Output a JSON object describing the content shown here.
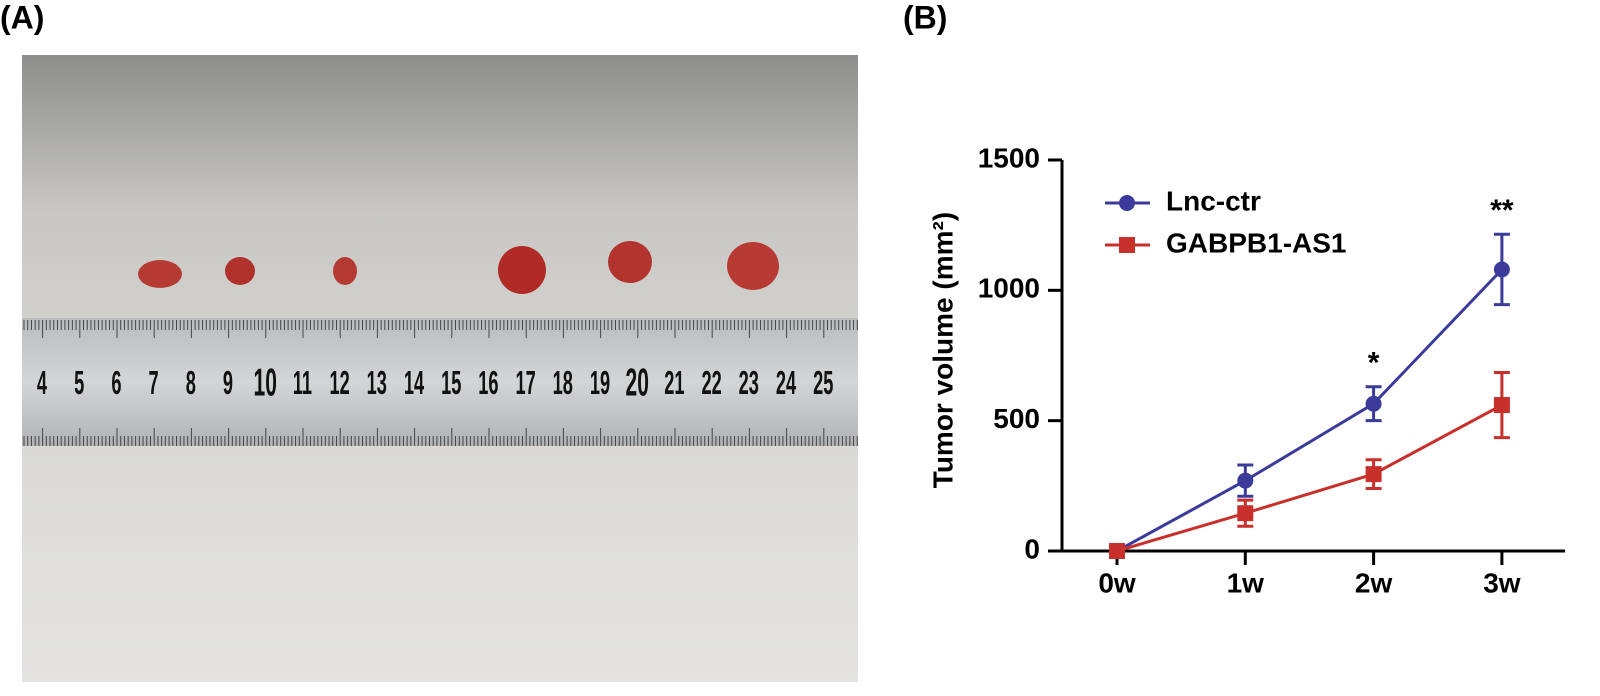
{
  "panel_labels": [
    "(A)",
    "(B)"
  ],
  "photo": {
    "ruler_labels": [
      "4",
      "5",
      "6",
      "7",
      "8",
      "9",
      "10",
      "11",
      "12",
      "13",
      "14",
      "15",
      "16",
      "17",
      "18",
      "19",
      "20",
      "21",
      "22",
      "23",
      "24",
      "25"
    ]
  },
  "chart_data": {
    "type": "line",
    "y_label": "Tumor volume (mm²)",
    "categories": [
      "0w",
      "1w",
      "2w",
      "3w"
    ],
    "series": [
      {
        "name": "Lnc-ctr",
        "color": "#3b3b9c",
        "marker": "circle",
        "values": [
          0,
          270,
          565,
          1080
        ],
        "errors": [
          0,
          60,
          65,
          135
        ]
      },
      {
        "name": "GABPB1-AS1",
        "color": "#c8302c",
        "marker": "square",
        "values": [
          0,
          145,
          295,
          560
        ],
        "errors": [
          0,
          50,
          55,
          125
        ]
      }
    ],
    "annotations": [
      {
        "x": "2w",
        "text": "*"
      },
      {
        "x": "3w",
        "text": "**"
      }
    ],
    "ylim": [
      0,
      1500
    ],
    "yticks": [
      0,
      500,
      1000,
      1500
    ]
  }
}
